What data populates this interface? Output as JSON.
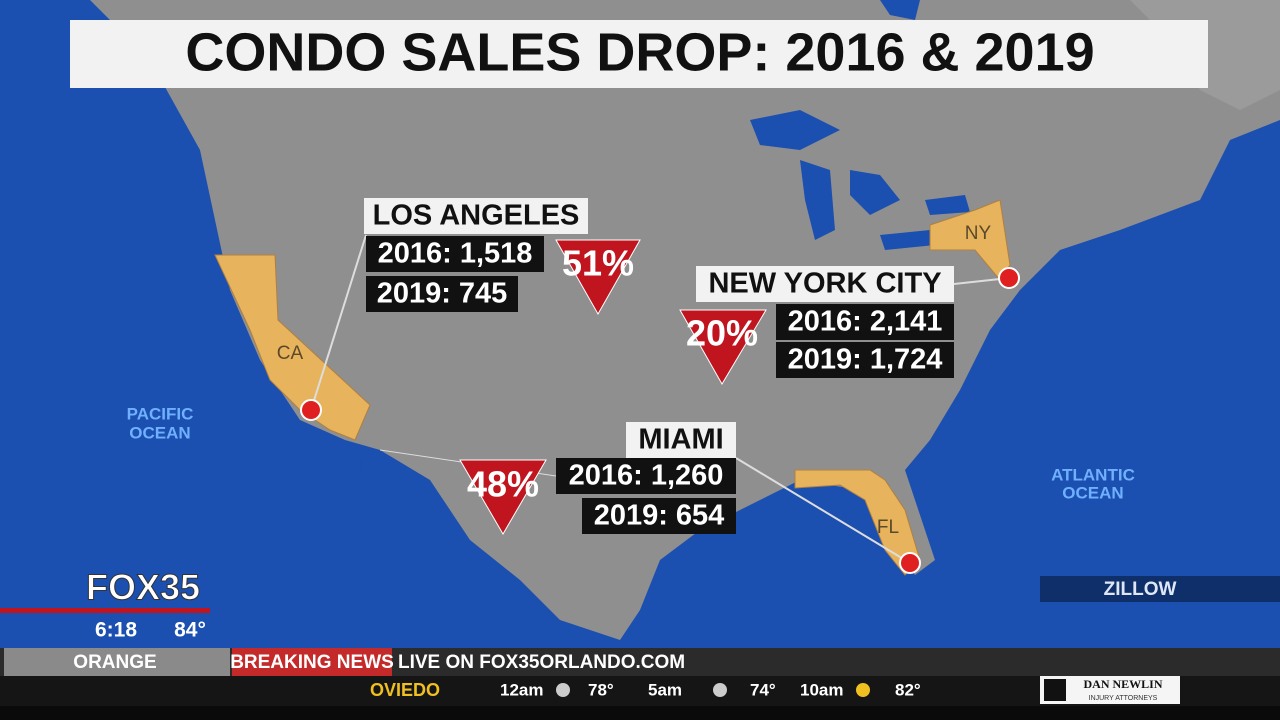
{
  "title": "CONDO SALES DROP: 2016 & 2019",
  "map_labels": {
    "ca": "CA",
    "ny": "NY",
    "fl": "FL",
    "pacific": [
      "PACIFIC",
      "OCEAN"
    ],
    "atlantic": [
      "ATLANTIC",
      "OCEAN"
    ]
  },
  "cities": [
    {
      "name": "LOS ANGELES",
      "stat_2016": "2016: 1,518",
      "stat_2019": "2019: 745",
      "change": "51%"
    },
    {
      "name": "NEW YORK CITY",
      "stat_2016": "2016: 2,141",
      "stat_2019": "2019: 1,724",
      "change": "20%"
    },
    {
      "name": "MIAMI",
      "stat_2016": "2016: 1,260",
      "stat_2019": "2019: 654",
      "change": "48%"
    }
  ],
  "source": "ZILLOW",
  "station": {
    "logo": "FOX35",
    "time": "6:18",
    "temp": "84°"
  },
  "ticker": {
    "county": "ORANGE",
    "tag": "BREAKING NEWS",
    "message": "LIVE ON FOX35ORLANDO.COM"
  },
  "weather": {
    "city": "OVIEDO",
    "forecast": [
      {
        "time": "12am",
        "temp": "78°"
      },
      {
        "time": "5am",
        "temp": "74°"
      },
      {
        "time": "10am",
        "temp": "82°"
      }
    ]
  },
  "sponsor": {
    "name": "DAN NEWLIN",
    "tagline": "INJURY ATTORNEYS"
  }
}
